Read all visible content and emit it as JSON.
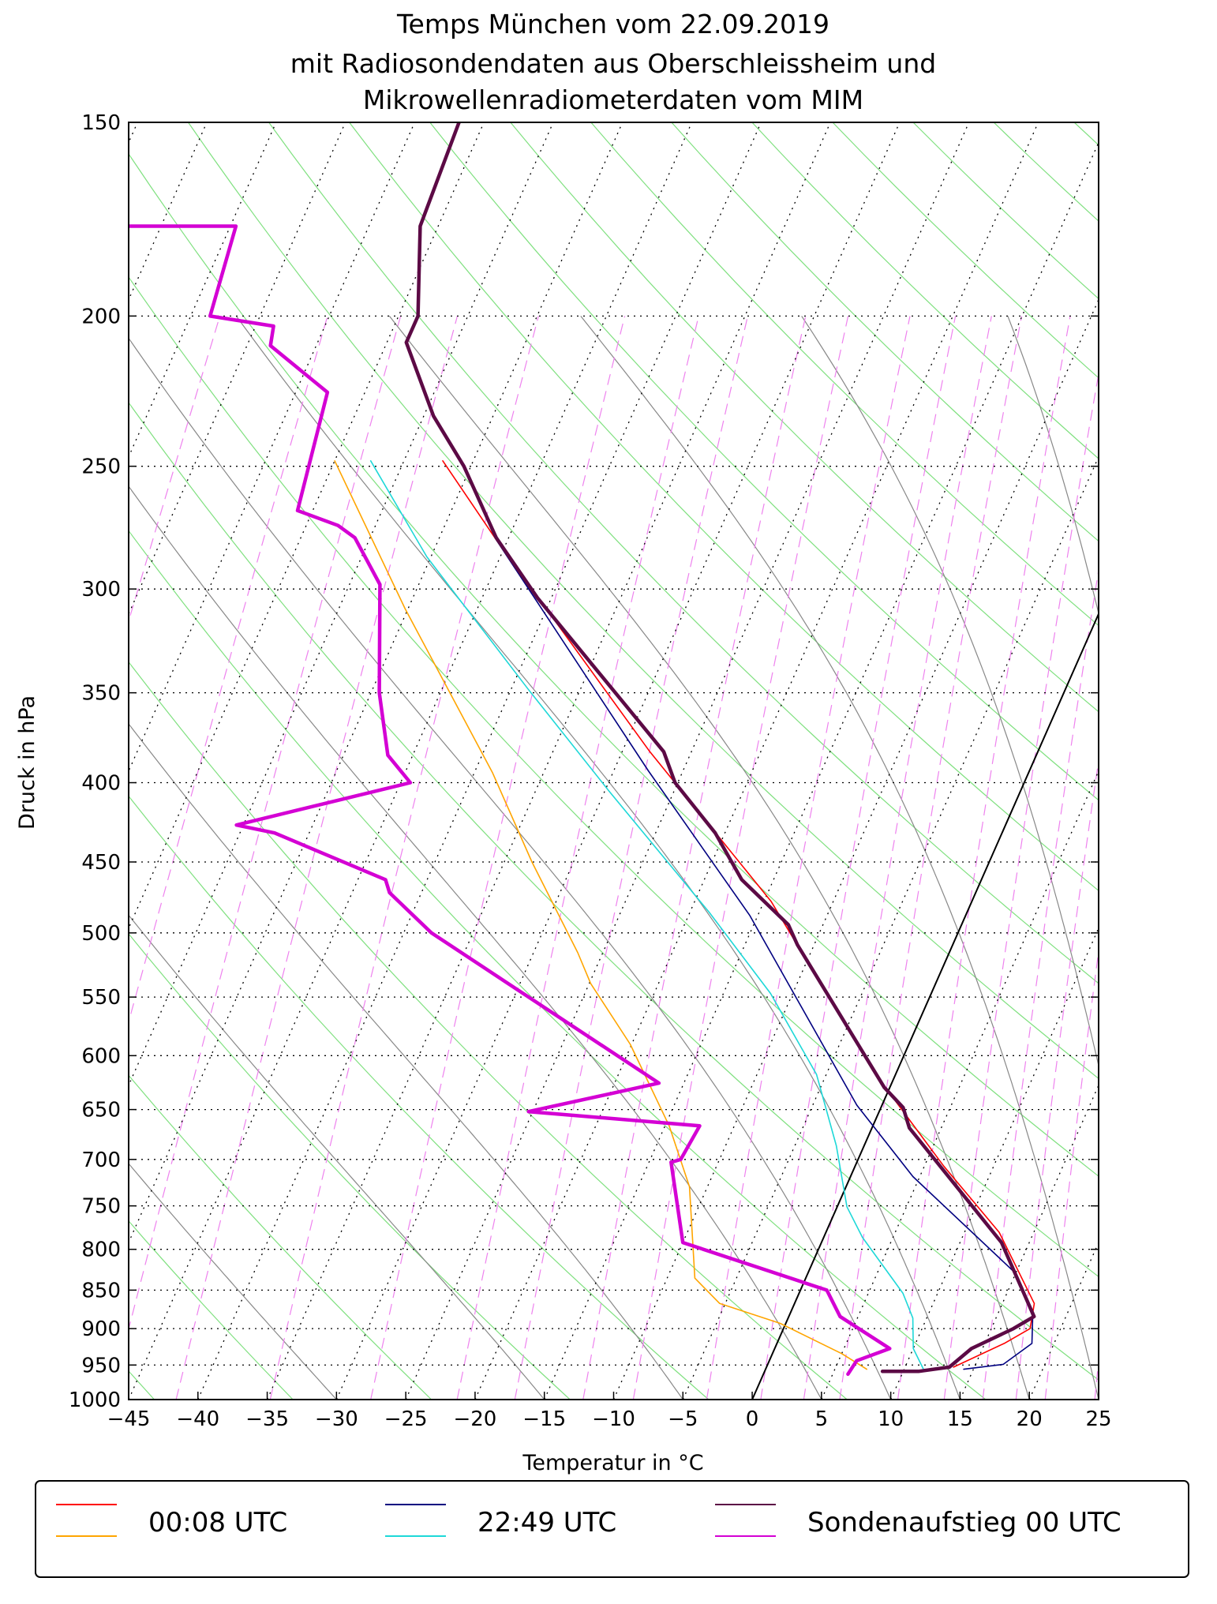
{
  "chart_data": {
    "type": "skewt",
    "title": [
      "Temps München vom 22.09.2019",
      "mit Radiosondendaten aus Oberschleissheim und",
      "Mikrowellenradiometerdaten vom MIM"
    ],
    "x_label": "Temperatur in °C",
    "y_label": "Druck in hPa",
    "xlim": [
      -45,
      25
    ],
    "ylim": [
      1000,
      150
    ],
    "log_y": true,
    "grid": true,
    "legend": "lower center",
    "xticks": [
      {
        "value": -45,
        "label": "−45"
      },
      {
        "value": -40,
        "label": "−40"
      },
      {
        "value": -35,
        "label": "−35"
      },
      {
        "value": -30,
        "label": "−30"
      },
      {
        "value": -25,
        "label": "−25"
      },
      {
        "value": -20,
        "label": "−20"
      },
      {
        "value": -15,
        "label": "−15"
      },
      {
        "value": -10,
        "label": "−10"
      },
      {
        "value": -5,
        "label": "−5"
      },
      0,
      5,
      10,
      15,
      20,
      25
    ],
    "yticks": [
      150,
      200,
      250,
      300,
      350,
      400,
      450,
      500,
      550,
      600,
      650,
      700,
      750,
      800,
      850,
      900,
      950,
      1000
    ],
    "series": [
      {
        "name": "00:08 UTC",
        "color": "#ff0000",
        "dewpoint_color": "#ffa500",
        "linewidth": 1.6,
        "pressure": [
          248,
          279,
          382,
          477,
          613,
          707,
          780,
          867,
          900,
          920,
          953
        ],
        "values": [
          -52.2,
          -45.8,
          -28.0,
          -14.5,
          -1.8,
          6.4,
          12.5,
          17.3,
          17.8,
          16.4,
          13.5
        ],
        "dewpoint_pressure": [
          248,
          309,
          394,
          450,
          515,
          539,
          590,
          666,
          729,
          835,
          867,
          893,
          934,
          956
        ],
        "dewpoint": [
          -60.0,
          -50.2,
          -38.7,
          -33.0,
          -26.8,
          -24.9,
          -20.1,
          -14.7,
          -11.3,
          -8.0,
          -5.4,
          -0.4,
          5.0,
          7.3
        ]
      },
      {
        "name": "22:49 UTC",
        "color": "#000080",
        "dewpoint_color": "#1ed8d8",
        "linewidth": 1.6,
        "pressure": [
          279,
          393,
          487,
          646,
          718,
          828,
          884,
          920,
          949,
          956
        ],
        "values": [
          -45.8,
          -27.5,
          -15.6,
          -1.8,
          4.5,
          14.9,
          17.6,
          18.4,
          17.0,
          14.3
        ],
        "dewpoint_pressure": [
          248,
          286,
          348,
          405,
          485,
          547,
          617,
          686,
          751,
          786,
          854,
          886,
          927,
          956
        ],
        "dewpoint": [
          -57.4,
          -50.3,
          -38.8,
          -29.7,
          -18.6,
          -11.6,
          -5.7,
          -2.0,
          0.7,
          2.8,
          7.5,
          9.0,
          10.0,
          11.4
        ]
      },
      {
        "name": "Sondenaufstieg 00 UTC",
        "color": "#5c0a45",
        "dewpoint_color": "#d400d4",
        "linewidth": 4.5,
        "pressure": [
          150,
          175,
          200,
          208,
          232,
          250,
          278,
          304,
          382,
          400,
          431,
          462,
          494,
          509,
          629,
          648,
          668,
          792,
          884,
          900,
          927,
          953,
          959,
          959
        ],
        "values": [
          -61.8,
          -61.3,
          -58.6,
          -58.6,
          -54.3,
          -50.5,
          -45.9,
          -41.0,
          -27.0,
          -25.2,
          -20.7,
          -17.3,
          -12.5,
          -11.2,
          -0.4,
          1.6,
          2.7,
          13.0,
          17.7,
          16.6,
          14.2,
          13.2,
          11.1,
          8.5
        ],
        "dewpoint_pressure": [
          175,
          175,
          200,
          203,
          209,
          224,
          267,
          273,
          278,
          298,
          350,
          384,
          400,
          426,
          431,
          462,
          471,
          500,
          625,
          652,
          666,
          700,
          703,
          792,
          850,
          884,
          927,
          944,
          963
        ],
        "dewpoint": [
          -82.5,
          -74.6,
          -73.6,
          -68.7,
          -68.3,
          -62.7,
          -61.1,
          -57.7,
          -56.1,
          -52.8,
          -49.4,
          -46.8,
          -44.3,
          -55.5,
          -52.5,
          -43.0,
          -42.3,
          -38.0,
          -16.8,
          -25.3,
          -12.5,
          -12.8,
          -13.4,
          -10.0,
          1.9,
          3.7,
          8.3,
          6.3,
          6.1
        ]
      }
    ]
  }
}
